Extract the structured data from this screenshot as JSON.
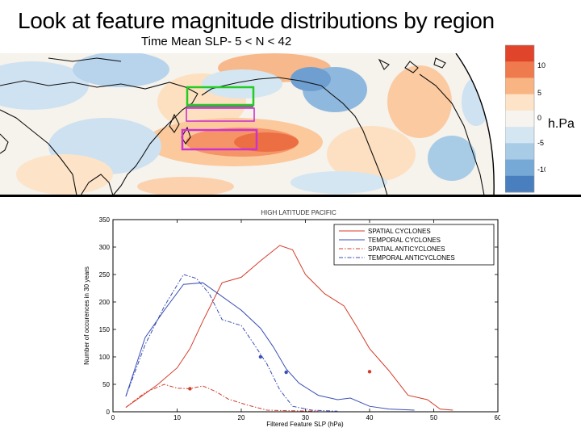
{
  "slide": {
    "title": "Look at feature magnitude distributions by region",
    "map_subtitle": "Time Mean SLP- 5 < N < 42",
    "unit_label": "h.Pa"
  },
  "colorbar": {
    "ticks": [
      "10",
      "5",
      "0",
      "-5",
      "-10"
    ],
    "colors": [
      "#e0452c",
      "#ef7a4e",
      "#f8b482",
      "#fde4c8",
      "#f7f4ef",
      "#d3e6f2",
      "#a8cbe6",
      "#77a9d6",
      "#4a7fbf"
    ]
  },
  "map": {
    "box_colors": {
      "green": "#22cc22",
      "magenta": "#cc33cc",
      "gray": "#777777"
    }
  },
  "chart_data": {
    "type": "line",
    "title": "HIGH LATITUDE PACIFIC",
    "xlabel": "Filtered Feature SLP (hPa)",
    "ylabel": "Number of occurences in 30 years",
    "xlim": [
      0,
      60
    ],
    "ylim": [
      0,
      350
    ],
    "xticks": [
      "0",
      "10",
      "20",
      "30",
      "40",
      "50",
      "60"
    ],
    "yticks": [
      "0",
      "50",
      "100",
      "150",
      "200",
      "250",
      "300",
      "350"
    ],
    "legend_position": "top-right",
    "series": [
      {
        "name": "SPATIAL CYCLONES",
        "color": "#d43c2a",
        "dash": "solid",
        "points": [
          [
            2,
            8
          ],
          [
            5,
            33
          ],
          [
            7,
            50
          ],
          [
            10,
            80
          ],
          [
            12,
            115
          ],
          [
            14,
            165
          ],
          [
            17,
            235
          ],
          [
            20,
            245
          ],
          [
            23,
            275
          ],
          [
            26,
            303
          ],
          [
            28,
            295
          ],
          [
            30,
            250
          ],
          [
            33,
            215
          ],
          [
            36,
            193
          ],
          [
            38,
            155
          ],
          [
            40,
            115
          ],
          [
            43,
            75
          ],
          [
            46,
            30
          ],
          [
            49,
            22
          ],
          [
            51,
            5
          ],
          [
            53,
            3
          ]
        ],
        "markers": [
          [
            40,
            73
          ]
        ]
      },
      {
        "name": "TEMPORAL CYCLONES",
        "color": "#3b4fb5",
        "dash": "solid",
        "points": [
          [
            2,
            28
          ],
          [
            5,
            135
          ],
          [
            8,
            185
          ],
          [
            11,
            232
          ],
          [
            14,
            235
          ],
          [
            17,
            210
          ],
          [
            20,
            185
          ],
          [
            23,
            152
          ],
          [
            25,
            118
          ],
          [
            27,
            78
          ],
          [
            29,
            52
          ],
          [
            32,
            30
          ],
          [
            35,
            22
          ],
          [
            37,
            25
          ],
          [
            40,
            10
          ],
          [
            43,
            5
          ],
          [
            47,
            3
          ]
        ],
        "markers": [
          [
            27,
            72
          ]
        ]
      },
      {
        "name": "SPATIAL ANTICYCLONES",
        "color": "#d43c2a",
        "dash": "dashdot",
        "points": [
          [
            2,
            8
          ],
          [
            5,
            35
          ],
          [
            8,
            50
          ],
          [
            10,
            43
          ],
          [
            12,
            42
          ],
          [
            14,
            47
          ],
          [
            16,
            37
          ],
          [
            18,
            23
          ],
          [
            21,
            12
          ],
          [
            24,
            3
          ],
          [
            27,
            2
          ],
          [
            32,
            1
          ]
        ],
        "markers": [
          [
            12,
            42
          ]
        ]
      },
      {
        "name": "TEMPORAL ANTICYCLONES",
        "color": "#3b4fb5",
        "dash": "dashdot",
        "points": [
          [
            2,
            28
          ],
          [
            5,
            122
          ],
          [
            8,
            192
          ],
          [
            11,
            250
          ],
          [
            13,
            243
          ],
          [
            15,
            215
          ],
          [
            17,
            168
          ],
          [
            20,
            157
          ],
          [
            22,
            123
          ],
          [
            24,
            87
          ],
          [
            26,
            40
          ],
          [
            28,
            10
          ],
          [
            31,
            3
          ],
          [
            35,
            1
          ]
        ],
        "markers": [
          [
            23,
            100
          ]
        ]
      }
    ]
  }
}
